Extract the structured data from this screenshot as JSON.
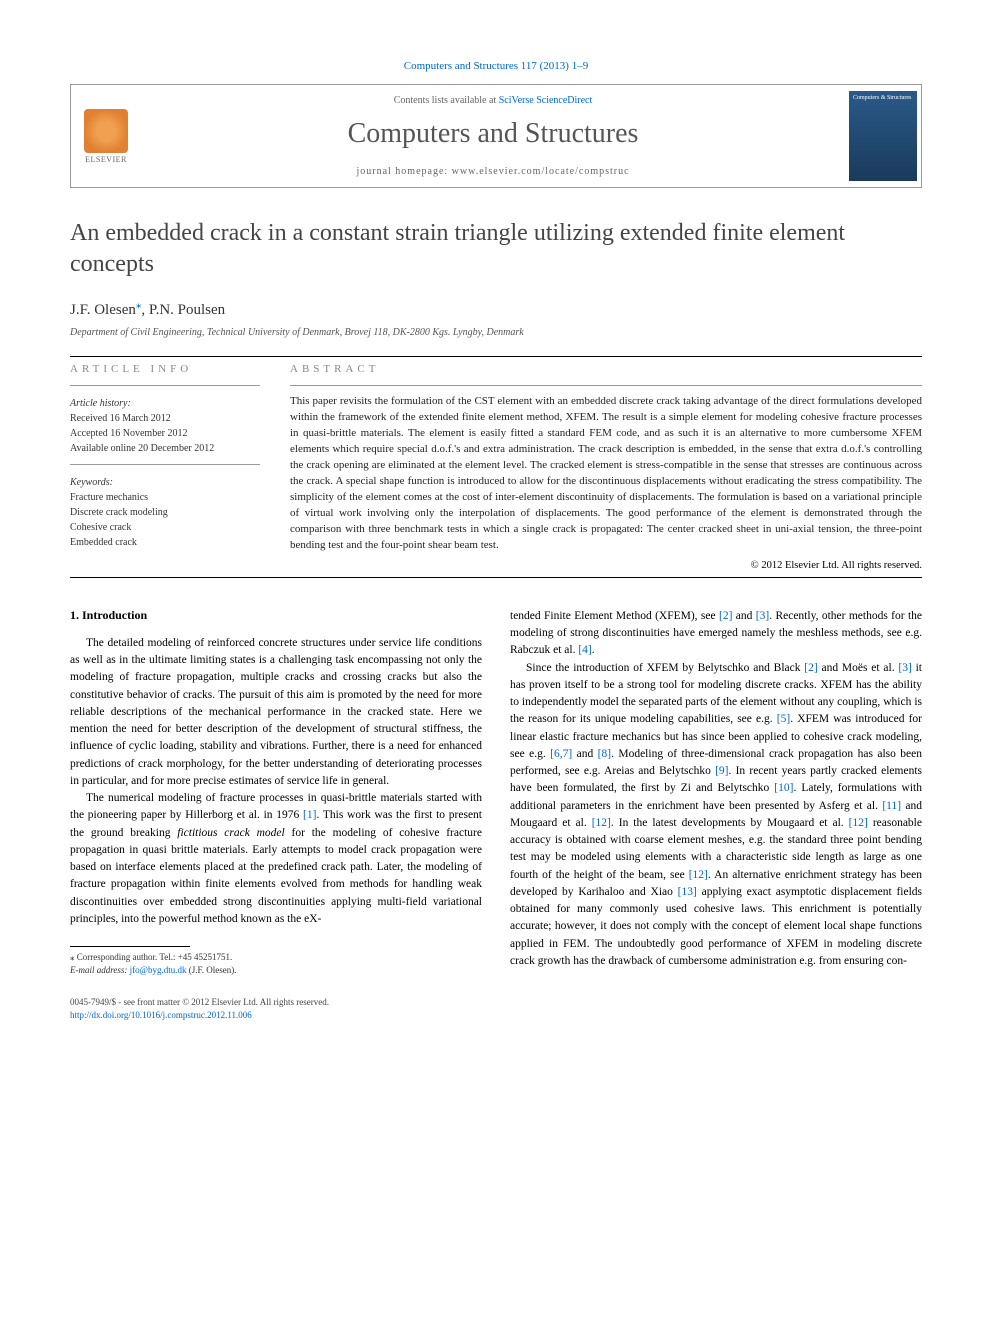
{
  "journal_ref": "Computers and Structures 117 (2013) 1–9",
  "header": {
    "contents_prefix": "Contents lists available at ",
    "contents_link": "SciVerse ScienceDirect",
    "journal_name": "Computers and Structures",
    "homepage_prefix": "journal homepage: ",
    "homepage_url": "www.elsevier.com/locate/compstruc",
    "publisher": "ELSEVIER",
    "cover_title": "Computers & Structures"
  },
  "article": {
    "title": "An embedded crack in a constant strain triangle utilizing extended finite element concepts",
    "authors": "J.F. Olesen",
    "author2": ", P.N. Poulsen",
    "affiliation": "Department of Civil Engineering, Technical University of Denmark, Brovej 118, DK-2800 Kgs. Lyngby, Denmark"
  },
  "info": {
    "label": "ARTICLE INFO",
    "history_heading": "Article history:",
    "received": "Received 16 March 2012",
    "accepted": "Accepted 16 November 2012",
    "online": "Available online 20 December 2012",
    "keywords_heading": "Keywords:",
    "kw1": "Fracture mechanics",
    "kw2": "Discrete crack modeling",
    "kw3": "Cohesive crack",
    "kw4": "Embedded crack"
  },
  "abstract": {
    "label": "ABSTRACT",
    "text": "This paper revisits the formulation of the CST element with an embedded discrete crack taking advantage of the direct formulations developed within the framework of the extended finite element method, XFEM. The result is a simple element for modeling cohesive fracture processes in quasi-brittle materials. The element is easily fitted a standard FEM code, and as such it is an alternative to more cumbersome XFEM elements which require special d.o.f.'s and extra administration. The crack description is embedded, in the sense that extra d.o.f.'s controlling the crack opening are eliminated at the element level. The cracked element is stress-compatible in the sense that stresses are continuous across the crack. A special shape function is introduced to allow for the discontinuous displacements without eradicating the stress compatibility. The simplicity of the element comes at the cost of inter-element discontinuity of displacements. The formulation is based on a variational principle of virtual work involving only the interpolation of displacements. The good performance of the element is demonstrated through the comparison with three benchmark tests in which a single crack is propagated: The center cracked sheet in uni-axial tension, the three-point bending test and the four-point shear beam test.",
    "copyright": "© 2012 Elsevier Ltd. All rights reserved."
  },
  "intro": {
    "heading": "1. Introduction",
    "p1": "The detailed modeling of reinforced concrete structures under service life conditions as well as in the ultimate limiting states is a challenging task encompassing not only the modeling of fracture propagation, multiple cracks and crossing cracks but also the constitutive behavior of cracks. The pursuit of this aim is promoted by the need for more reliable descriptions of the mechanical performance in the cracked state. Here we mention the need for better description of the development of structural stiffness, the influence of cyclic loading, stability and vibrations. Further, there is a need for enhanced predictions of crack morphology, for the better understanding of deteriorating processes in particular, and for more precise estimates of service life in general.",
    "p2a": "The numerical modeling of fracture processes in quasi-brittle materials started with the pioneering paper by Hillerborg et al. in 1976 ",
    "p2_ref1": "[1]",
    "p2b": ". This work was the first to present the ground breaking ",
    "p2_em": "fictitious crack model",
    "p2c": " for the modeling of cohesive fracture propagation in quasi brittle materials. Early attempts to model crack propagation were based on interface elements placed at the predefined crack path. Later, the modeling of fracture propagation within finite elements evolved from methods for handling weak discontinuities over embedded strong discontinuities applying multi-field variational principles, into the powerful method known as the eX-",
    "p3a": "tended Finite Element Method (XFEM), see ",
    "p3_ref2": "[2]",
    "p3b": " and ",
    "p3_ref3": "[3]",
    "p3c": ". Recently, other methods for the modeling of strong discontinuities have emerged namely the meshless methods, see e.g. Rabczuk et al. ",
    "p3_ref4": "[4]",
    "p3d": ".",
    "p4a": "Since the introduction of XFEM by Belytschko and Black ",
    "p4_ref2": "[2]",
    "p4b": " and Moës et al. ",
    "p4_ref3": "[3]",
    "p4c": " it has proven itself to be a strong tool for modeling discrete cracks. XFEM has the ability to independently model the separated parts of the element without any coupling, which is the reason for its unique modeling capabilities, see e.g. ",
    "p4_ref5": "[5]",
    "p4d": ". XFEM was introduced for linear elastic fracture mechanics but has since been applied to cohesive crack modeling, see e.g. ",
    "p4_ref67": "[6,7]",
    "p4e": " and ",
    "p4_ref8": "[8]",
    "p4f": ". Modeling of three-dimensional crack propagation has also been performed, see e.g. Areias and Belytschko ",
    "p4_ref9": "[9]",
    "p4g": ". In recent years partly cracked elements have been formulated, the first by Zi and Belytschko ",
    "p4_ref10": "[10]",
    "p4h": ". Lately, formulations with additional parameters in the enrichment have been presented by Asferg et al. ",
    "p4_ref11": "[11]",
    "p4i": " and Mougaard et al. ",
    "p4_ref12": "[12]",
    "p4j": ". In the latest developments by Mougaard et al. ",
    "p4_ref12b": "[12]",
    "p4k": " reasonable accuracy is obtained with coarse element meshes, e.g. the standard three point bending test may be modeled using elements with a characteristic side length as large as one fourth of the height of the beam, see ",
    "p4_ref12c": "[12]",
    "p4l": ". An alternative enrichment strategy has been developed by Karihaloo and Xiao ",
    "p4_ref13": "[13]",
    "p4m": " applying exact asymptotic displacement fields obtained for many commonly used cohesive laws. This enrichment is potentially accurate; however, it does not comply with the concept of element local shape functions applied in FEM. The undoubtedly good performance of XFEM in modeling discrete crack growth has the drawback of cumbersome administration e.g. from ensuring con-"
  },
  "footnote": {
    "star": "⁎",
    "corr": " Corresponding author. Tel.: +45 45251751.",
    "email_label": "E-mail address: ",
    "email": "jfo@byg.dtu.dk",
    "email_suffix": " (J.F. Olesen)."
  },
  "footer": {
    "issn": "0045-7949/$ - see front matter © 2012 Elsevier Ltd. All rights reserved.",
    "doi": "http://dx.doi.org/10.1016/j.compstruc.2012.11.006"
  },
  "colors": {
    "link": "#0066cc",
    "text": "#000000",
    "muted": "#666666"
  }
}
